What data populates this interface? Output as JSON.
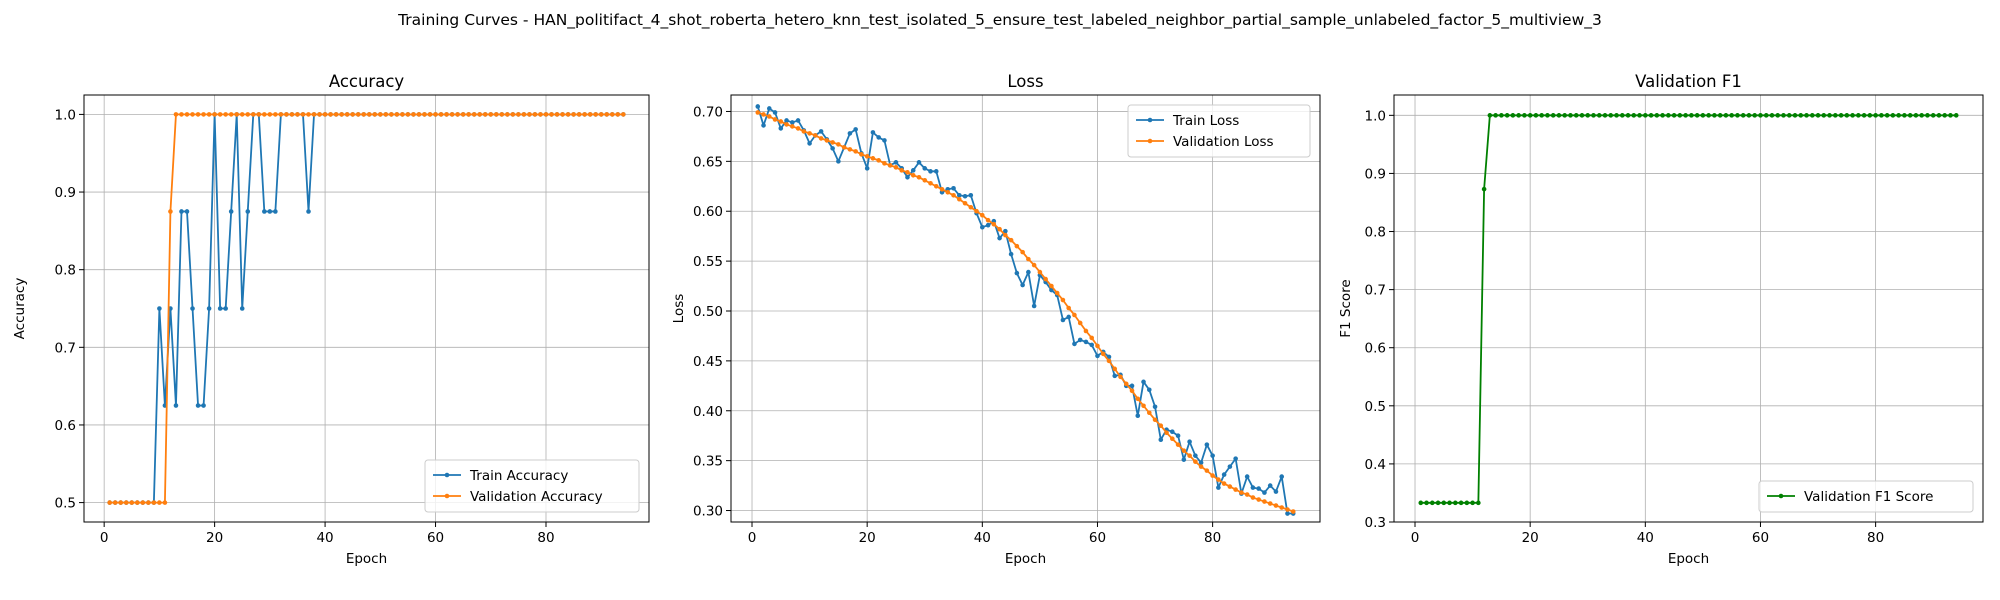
{
  "figure": {
    "suptitle": "Training Curves - HAN_politifact_4_shot_roberta_hetero_knn_test_isolated_5_ensure_test_labeled_neighbor_partial_sample_unlabeled_factor_5_multiview_3"
  },
  "colors": {
    "blue": "#1f77b4",
    "orange": "#ff7f0e",
    "green": "#008000",
    "grid": "#b0b0b0"
  },
  "chart_data": [
    {
      "type": "line",
      "title": "Accuracy",
      "xlabel": "Epoch",
      "ylabel": "Accuracy",
      "xlim": [
        -3.65,
        98.65
      ],
      "ylim": [
        0.475,
        1.025
      ],
      "xticks": [
        0,
        20,
        40,
        60,
        80
      ],
      "xtick_labels": [
        "0",
        "20",
        "40",
        "60",
        "80"
      ],
      "yticks": [
        0.5,
        0.6,
        0.7,
        0.8,
        0.9,
        1.0
      ],
      "ytick_labels": [
        "0.5",
        "0.6",
        "0.7",
        "0.8",
        "0.9",
        "1.0"
      ],
      "grid": true,
      "legend_position": "lower right",
      "x": [
        1,
        2,
        3,
        4,
        5,
        6,
        7,
        8,
        9,
        10,
        11,
        12,
        13,
        14,
        15,
        16,
        17,
        18,
        19,
        20,
        21,
        22,
        23,
        24,
        25,
        26,
        27,
        28,
        29,
        30,
        31,
        32,
        33,
        34,
        35,
        36,
        37,
        38,
        39,
        40,
        41,
        42,
        43,
        44,
        45,
        46,
        47,
        48,
        49,
        50,
        51,
        52,
        53,
        54,
        55,
        56,
        57,
        58,
        59,
        60,
        61,
        62,
        63,
        64,
        65,
        66,
        67,
        68,
        69,
        70,
        71,
        72,
        73,
        74,
        75,
        76,
        77,
        78,
        79,
        80,
        81,
        82,
        83,
        84,
        85,
        86,
        87,
        88,
        89,
        90,
        91,
        92,
        93,
        94
      ],
      "series": [
        {
          "name": "Train Accuracy",
          "color": "#1f77b4",
          "values": [
            0.5,
            0.5,
            0.5,
            0.5,
            0.5,
            0.5,
            0.5,
            0.5,
            0.5,
            0.75,
            0.625,
            0.75,
            0.625,
            0.875,
            0.875,
            0.75,
            0.625,
            0.625,
            0.75,
            1.0,
            0.75,
            0.75,
            0.875,
            1.0,
            0.75,
            0.875,
            1.0,
            1.0,
            0.875,
            0.875,
            0.875,
            1.0,
            1.0,
            1.0,
            1.0,
            1.0,
            0.875,
            1.0,
            1.0,
            1.0,
            1.0,
            1.0,
            1.0,
            1.0,
            1.0,
            1.0,
            1.0,
            1.0,
            1.0,
            1.0,
            1.0,
            1.0,
            1.0,
            1.0,
            1.0,
            1.0,
            1.0,
            1.0,
            1.0,
            1.0,
            1.0,
            1.0,
            1.0,
            1.0,
            1.0,
            1.0,
            1.0,
            1.0,
            1.0,
            1.0,
            1.0,
            1.0,
            1.0,
            1.0,
            1.0,
            1.0,
            1.0,
            1.0,
            1.0,
            1.0,
            1.0,
            1.0,
            1.0,
            1.0,
            1.0,
            1.0,
            1.0,
            1.0,
            1.0,
            1.0,
            1.0,
            1.0,
            1.0,
            1.0
          ]
        },
        {
          "name": "Validation Accuracy",
          "color": "#ff7f0e",
          "values": [
            0.5,
            0.5,
            0.5,
            0.5,
            0.5,
            0.5,
            0.5,
            0.5,
            0.5,
            0.5,
            0.5,
            0.875,
            1.0,
            1.0,
            1.0,
            1.0,
            1.0,
            1.0,
            1.0,
            1.0,
            1.0,
            1.0,
            1.0,
            1.0,
            1.0,
            1.0,
            1.0,
            1.0,
            1.0,
            1.0,
            1.0,
            1.0,
            1.0,
            1.0,
            1.0,
            1.0,
            1.0,
            1.0,
            1.0,
            1.0,
            1.0,
            1.0,
            1.0,
            1.0,
            1.0,
            1.0,
            1.0,
            1.0,
            1.0,
            1.0,
            1.0,
            1.0,
            1.0,
            1.0,
            1.0,
            1.0,
            1.0,
            1.0,
            1.0,
            1.0,
            1.0,
            1.0,
            1.0,
            1.0,
            1.0,
            1.0,
            1.0,
            1.0,
            1.0,
            1.0,
            1.0,
            1.0,
            1.0,
            1.0,
            1.0,
            1.0,
            1.0,
            1.0,
            1.0,
            1.0,
            1.0,
            1.0,
            1.0,
            1.0,
            1.0,
            1.0,
            1.0,
            1.0,
            1.0,
            1.0,
            1.0,
            1.0,
            1.0,
            1.0
          ]
        }
      ]
    },
    {
      "type": "line",
      "title": "Loss",
      "xlabel": "Epoch",
      "ylabel": "Loss",
      "xlim": [
        -3.65,
        98.65
      ],
      "ylim": [
        0.2885,
        0.7165
      ],
      "xticks": [
        0,
        20,
        40,
        60,
        80
      ],
      "xtick_labels": [
        "0",
        "20",
        "40",
        "60",
        "80"
      ],
      "yticks": [
        0.3,
        0.35,
        0.4,
        0.45,
        0.5,
        0.55,
        0.6,
        0.65,
        0.7
      ],
      "ytick_labels": [
        "0.30",
        "0.35",
        "0.40",
        "0.45",
        "0.50",
        "0.55",
        "0.60",
        "0.65",
        "0.70"
      ],
      "grid": true,
      "legend_position": "upper right",
      "x": [
        1,
        2,
        3,
        4,
        5,
        6,
        7,
        8,
        9,
        10,
        11,
        12,
        13,
        14,
        15,
        16,
        17,
        18,
        19,
        20,
        21,
        22,
        23,
        24,
        25,
        26,
        27,
        28,
        29,
        30,
        31,
        32,
        33,
        34,
        35,
        36,
        37,
        38,
        39,
        40,
        41,
        42,
        43,
        44,
        45,
        46,
        47,
        48,
        49,
        50,
        51,
        52,
        53,
        54,
        55,
        56,
        57,
        58,
        59,
        60,
        61,
        62,
        63,
        64,
        65,
        66,
        67,
        68,
        69,
        70,
        71,
        72,
        73,
        74,
        75,
        76,
        77,
        78,
        79,
        80,
        81,
        82,
        83,
        84,
        85,
        86,
        87,
        88,
        89,
        90,
        91,
        92,
        93,
        94
      ],
      "series": [
        {
          "name": "Train Loss",
          "color": "#1f77b4",
          "values": [
            0.705,
            0.686,
            0.703,
            0.699,
            0.683,
            0.691,
            0.689,
            0.691,
            0.681,
            0.668,
            0.676,
            0.68,
            0.672,
            0.663,
            0.65,
            0.664,
            0.678,
            0.682,
            0.658,
            0.643,
            0.679,
            0.674,
            0.671,
            0.646,
            0.649,
            0.643,
            0.634,
            0.641,
            0.649,
            0.643,
            0.64,
            0.64,
            0.619,
            0.622,
            0.623,
            0.616,
            0.615,
            0.616,
            0.598,
            0.584,
            0.586,
            0.59,
            0.573,
            0.58,
            0.557,
            0.538,
            0.526,
            0.539,
            0.505,
            0.536,
            0.529,
            0.521,
            0.516,
            0.491,
            0.494,
            0.467,
            0.471,
            0.469,
            0.466,
            0.455,
            0.459,
            0.454,
            0.435,
            0.436,
            0.425,
            0.425,
            0.395,
            0.429,
            0.421,
            0.404,
            0.371,
            0.381,
            0.379,
            0.375,
            0.351,
            0.369,
            0.355,
            0.348,
            0.366,
            0.355,
            0.323,
            0.336,
            0.344,
            0.352,
            0.317,
            0.334,
            0.323,
            0.322,
            0.318,
            0.325,
            0.319,
            0.334,
            0.297,
            0.297
          ]
        },
        {
          "name": "Validation Loss",
          "color": "#ff7f0e",
          "values": [
            0.699,
            0.697,
            0.695,
            0.692,
            0.69,
            0.687,
            0.685,
            0.683,
            0.68,
            0.678,
            0.676,
            0.673,
            0.671,
            0.669,
            0.667,
            0.664,
            0.662,
            0.66,
            0.657,
            0.655,
            0.653,
            0.651,
            0.648,
            0.646,
            0.644,
            0.641,
            0.639,
            0.636,
            0.634,
            0.631,
            0.628,
            0.625,
            0.622,
            0.619,
            0.616,
            0.612,
            0.608,
            0.604,
            0.6,
            0.596,
            0.591,
            0.587,
            0.582,
            0.576,
            0.571,
            0.565,
            0.559,
            0.552,
            0.546,
            0.539,
            0.532,
            0.525,
            0.518,
            0.511,
            0.503,
            0.496,
            0.488,
            0.48,
            0.473,
            0.465,
            0.457,
            0.45,
            0.442,
            0.434,
            0.427,
            0.42,
            0.412,
            0.405,
            0.398,
            0.391,
            0.385,
            0.378,
            0.372,
            0.366,
            0.36,
            0.355,
            0.349,
            0.344,
            0.34,
            0.335,
            0.331,
            0.327,
            0.324,
            0.321,
            0.318,
            0.316,
            0.313,
            0.311,
            0.309,
            0.307,
            0.305,
            0.303,
            0.301,
            0.299
          ]
        }
      ]
    },
    {
      "type": "line",
      "title": "Validation F1",
      "xlabel": "Epoch",
      "ylabel": "F1 Score",
      "xlim": [
        -3.65,
        98.65
      ],
      "ylim": [
        0.3,
        1.035
      ],
      "xticks": [
        0,
        20,
        40,
        60,
        80
      ],
      "xtick_labels": [
        "0",
        "20",
        "40",
        "60",
        "80"
      ],
      "yticks": [
        0.3,
        0.4,
        0.5,
        0.6,
        0.7,
        0.8,
        0.9,
        1.0
      ],
      "ytick_labels": [
        "0.3",
        "0.4",
        "0.5",
        "0.6",
        "0.7",
        "0.8",
        "0.9",
        "1.0"
      ],
      "grid": true,
      "legend_position": "lower right",
      "x": [
        1,
        2,
        3,
        4,
        5,
        6,
        7,
        8,
        9,
        10,
        11,
        12,
        13,
        14,
        15,
        16,
        17,
        18,
        19,
        20,
        21,
        22,
        23,
        24,
        25,
        26,
        27,
        28,
        29,
        30,
        31,
        32,
        33,
        34,
        35,
        36,
        37,
        38,
        39,
        40,
        41,
        42,
        43,
        44,
        45,
        46,
        47,
        48,
        49,
        50,
        51,
        52,
        53,
        54,
        55,
        56,
        57,
        58,
        59,
        60,
        61,
        62,
        63,
        64,
        65,
        66,
        67,
        68,
        69,
        70,
        71,
        72,
        73,
        74,
        75,
        76,
        77,
        78,
        79,
        80,
        81,
        82,
        83,
        84,
        85,
        86,
        87,
        88,
        89,
        90,
        91,
        92,
        93,
        94
      ],
      "series": [
        {
          "name": "Validation F1 Score",
          "color": "#008000",
          "values": [
            0.333,
            0.333,
            0.333,
            0.333,
            0.333,
            0.333,
            0.333,
            0.333,
            0.333,
            0.333,
            0.333,
            0.873,
            1.0,
            1.0,
            1.0,
            1.0,
            1.0,
            1.0,
            1.0,
            1.0,
            1.0,
            1.0,
            1.0,
            1.0,
            1.0,
            1.0,
            1.0,
            1.0,
            1.0,
            1.0,
            1.0,
            1.0,
            1.0,
            1.0,
            1.0,
            1.0,
            1.0,
            1.0,
            1.0,
            1.0,
            1.0,
            1.0,
            1.0,
            1.0,
            1.0,
            1.0,
            1.0,
            1.0,
            1.0,
            1.0,
            1.0,
            1.0,
            1.0,
            1.0,
            1.0,
            1.0,
            1.0,
            1.0,
            1.0,
            1.0,
            1.0,
            1.0,
            1.0,
            1.0,
            1.0,
            1.0,
            1.0,
            1.0,
            1.0,
            1.0,
            1.0,
            1.0,
            1.0,
            1.0,
            1.0,
            1.0,
            1.0,
            1.0,
            1.0,
            1.0,
            1.0,
            1.0,
            1.0,
            1.0,
            1.0,
            1.0,
            1.0,
            1.0,
            1.0,
            1.0,
            1.0,
            1.0,
            1.0,
            1.0
          ]
        }
      ]
    }
  ]
}
